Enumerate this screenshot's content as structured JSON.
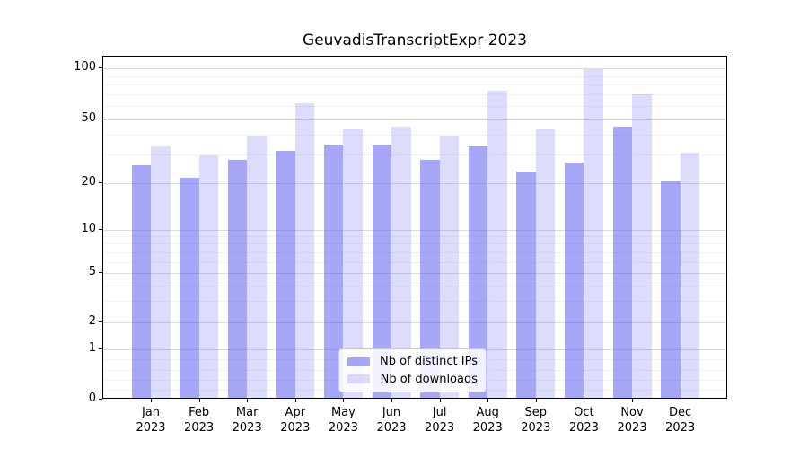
{
  "title": "GeuvadisTranscriptExpr 2023",
  "legend": {
    "items": [
      {
        "label": "Nb of distinct IPs",
        "color": "rgba(80,80,240,0.5)"
      },
      {
        "label": "Nb of downloads",
        "color": "rgba(80,80,240,0.2)"
      }
    ]
  },
  "colors": {
    "bar_distinct_ips": "#a7a7f6",
    "bar_downloads": "#dbdbfa",
    "grid_major": "#dcdcdc",
    "grid_minor": "#f2f2f4",
    "axis": "#000000"
  },
  "chart_data": {
    "type": "bar",
    "title": "GeuvadisTranscriptExpr 2023",
    "categories": [
      "Jan 2023",
      "Feb 2023",
      "Mar 2023",
      "Apr 2023",
      "May 2023",
      "Jun 2023",
      "Jul 2023",
      "Aug 2023",
      "Sep 2023",
      "Oct 2023",
      "Nov 2023",
      "Dec 2023"
    ],
    "series": [
      {
        "name": "Nb of distinct IPs",
        "color": "rgba(80,80,240,0.5)",
        "values": [
          25,
          21,
          27,
          31,
          34,
          34,
          27,
          33,
          23,
          26,
          44,
          20
        ]
      },
      {
        "name": "Nb of downloads",
        "color": "rgba(80,80,240,0.2)",
        "values": [
          33,
          29,
          38,
          61,
          42,
          44,
          38,
          72,
          42,
          97,
          69,
          30
        ]
      }
    ],
    "xlabel": "",
    "ylabel": "",
    "yscale": "symlog-like (log above 1, linear 0-1)",
    "ylim": [
      0,
      119
    ],
    "yticks": [
      0,
      1,
      2,
      5,
      10,
      20,
      50,
      100
    ],
    "minor_yticks": [
      0.2,
      0.4,
      0.6,
      0.8,
      3,
      4,
      6,
      7,
      8,
      9,
      30,
      40,
      60,
      70,
      80,
      90
    ],
    "grid": true,
    "legend_position": "lower center",
    "scale_anchors": [
      [
        0,
        1.0
      ],
      [
        1,
        0.8542
      ],
      [
        2,
        0.7757
      ],
      [
        5,
        0.6317
      ],
      [
        10,
        0.5039
      ],
      [
        20,
        0.3683
      ],
      [
        50,
        0.1824
      ],
      [
        100,
        0.0348
      ]
    ]
  }
}
